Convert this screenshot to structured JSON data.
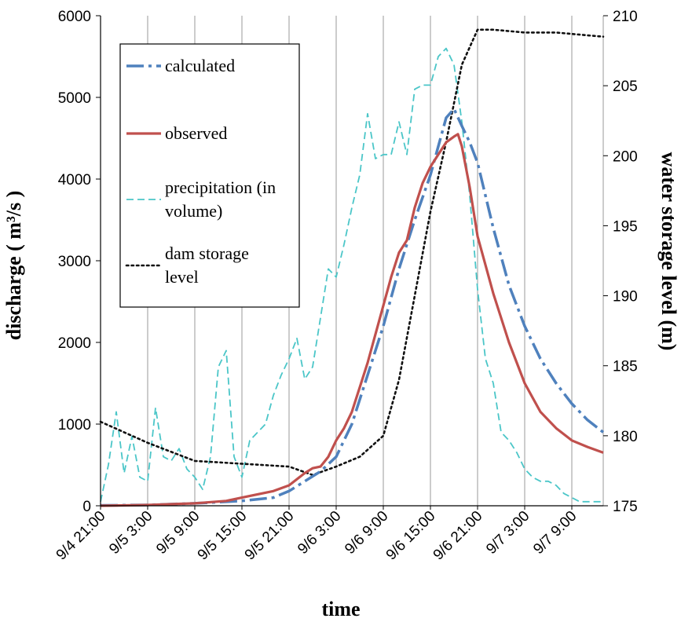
{
  "chart_data": {
    "type": "line",
    "xlabel": "time",
    "ylabel_left": "discharge ( m³/s )",
    "ylabel_right": "water storage level (m)",
    "ylim_left": [
      0,
      6000
    ],
    "ylim_right": [
      175,
      210
    ],
    "yticks_left": [
      "0",
      "1000",
      "2000",
      "3000",
      "4000",
      "5000",
      "6000"
    ],
    "yticks_right": [
      "175",
      "180",
      "185",
      "190",
      "195",
      "200",
      "205",
      "210"
    ],
    "x_range_hours": [
      0,
      64
    ],
    "x_ticks": [
      {
        "h": 0,
        "label": "9/4 21:00"
      },
      {
        "h": 6,
        "label": "9/5 3:00"
      },
      {
        "h": 12,
        "label": "9/5 9:00"
      },
      {
        "h": 18,
        "label": "9/5 15:00"
      },
      {
        "h": 24,
        "label": "9/5 21:00"
      },
      {
        "h": 30,
        "label": "9/6 3:00"
      },
      {
        "h": 36,
        "label": "9/6 9:00"
      },
      {
        "h": 42,
        "label": "9/6 15:00"
      },
      {
        "h": 48,
        "label": "9/6 21:00"
      },
      {
        "h": 54,
        "label": "9/7 3:00"
      },
      {
        "h": 60,
        "label": "9/7 9:00"
      }
    ],
    "grid": "vertical",
    "legend": "top-left",
    "series": [
      {
        "name": "calculated",
        "axis": "left",
        "style": "dash-dot",
        "color": "#4f81bd",
        "x": [
          0,
          6,
          12,
          18,
          22,
          24,
          26,
          28,
          30,
          32,
          34,
          36,
          38,
          40,
          42,
          43,
          44,
          45,
          46,
          47,
          48,
          50,
          52,
          54,
          56,
          58,
          60,
          62,
          64
        ],
        "y": [
          5,
          10,
          30,
          60,
          100,
          180,
          300,
          420,
          600,
          1000,
          1600,
          2200,
          2900,
          3500,
          4050,
          4400,
          4750,
          4860,
          4650,
          4450,
          4200,
          3400,
          2700,
          2200,
          1800,
          1500,
          1250,
          1050,
          900
        ]
      },
      {
        "name": "observed",
        "axis": "left",
        "style": "solid",
        "color": "#c0504d",
        "x": [
          0,
          6,
          12,
          16,
          18,
          20,
          22,
          24,
          26,
          27,
          28,
          29,
          30,
          31,
          32,
          33,
          34,
          35,
          36,
          37,
          38,
          39,
          40,
          41,
          42,
          43,
          44,
          45,
          45.5,
          46,
          47,
          48,
          50,
          52,
          54,
          56,
          58,
          60,
          62,
          64
        ],
        "y": [
          0,
          10,
          30,
          60,
          100,
          140,
          180,
          250,
          400,
          460,
          480,
          600,
          800,
          950,
          1150,
          1450,
          1750,
          2100,
          2450,
          2800,
          3100,
          3250,
          3650,
          3950,
          4150,
          4300,
          4450,
          4520,
          4550,
          4400,
          3900,
          3300,
          2600,
          2000,
          1500,
          1150,
          950,
          800,
          720,
          650
        ]
      },
      {
        "name": "precipitation (in volume)",
        "axis": "left",
        "style": "dashed",
        "color": "#4bc6c8",
        "x": [
          0,
          1,
          2,
          3,
          4,
          5,
          6,
          7,
          8,
          9,
          10,
          11,
          12,
          13,
          14,
          15,
          16,
          17,
          18,
          19,
          20,
          21,
          22,
          23,
          24,
          25,
          26,
          27,
          28,
          29,
          30,
          31,
          32,
          33,
          34,
          35,
          36,
          37,
          38,
          39,
          40,
          41,
          42,
          43,
          44,
          45,
          46,
          47,
          48,
          49,
          50,
          51,
          52,
          53,
          54,
          55,
          56,
          57,
          58,
          59,
          60,
          61,
          62,
          63,
          64
        ],
        "y": [
          50,
          500,
          1150,
          400,
          850,
          350,
          300,
          1200,
          600,
          550,
          700,
          450,
          350,
          200,
          600,
          1700,
          1900,
          600,
          350,
          800,
          900,
          1000,
          1350,
          1600,
          1800,
          2050,
          1550,
          1700,
          2300,
          2900,
          2800,
          3200,
          3650,
          4050,
          4800,
          4250,
          4300,
          4300,
          4700,
          4300,
          5100,
          5150,
          5150,
          5500,
          5600,
          5400,
          4700,
          3800,
          2650,
          1800,
          1500,
          900,
          800,
          650,
          450,
          350,
          300,
          300,
          250,
          150,
          100,
          50,
          50,
          50,
          50
        ]
      },
      {
        "name": "dam storage level",
        "axis": "right",
        "style": "dotted",
        "color": "#111111",
        "x": [
          0,
          6,
          12,
          18,
          24,
          27,
          30,
          33,
          36,
          38,
          40,
          42,
          44,
          46,
          48,
          50,
          54,
          58,
          62,
          64
        ],
        "y": [
          181,
          179.5,
          178.2,
          178,
          177.8,
          177.2,
          177.8,
          178.5,
          180,
          184,
          190,
          196,
          201,
          206.5,
          209,
          209,
          208.8,
          208.8,
          208.6,
          208.5
        ]
      }
    ]
  }
}
